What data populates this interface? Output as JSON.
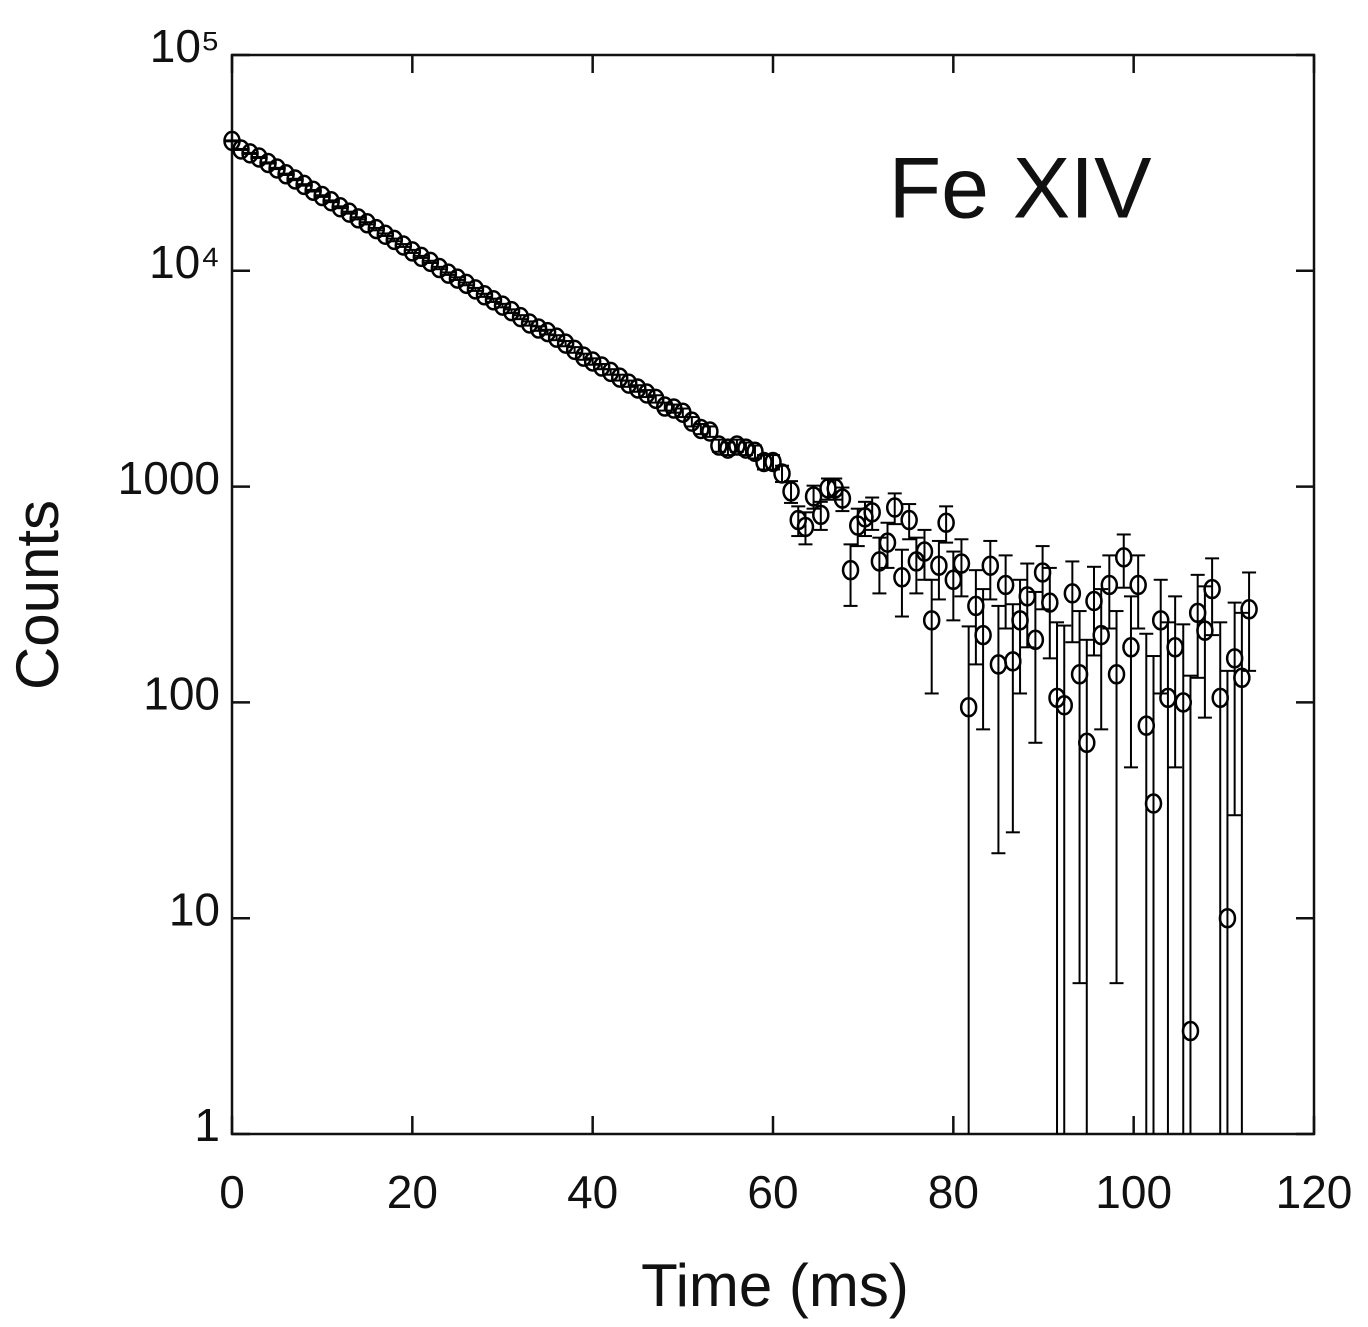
{
  "chart_data": {
    "type": "scatter",
    "annotation": "Fe XIV",
    "xlabel": "Time (ms)",
    "ylabel": "Counts",
    "log_y": true,
    "color": "#000000",
    "xlim": [
      0,
      120
    ],
    "ylim": [
      1,
      100000
    ],
    "xticks": [
      0,
      20,
      40,
      60,
      80,
      100,
      120
    ],
    "yticks": [
      1,
      10,
      100,
      1000,
      {
        "value": 10000,
        "label": "10⁴"
      },
      {
        "value": 100000,
        "label": "10⁵"
      }
    ],
    "x": [
      0,
      1,
      2,
      3,
      4,
      5,
      6,
      7,
      8,
      9,
      10,
      11,
      12,
      13,
      14,
      15,
      16,
      17,
      18,
      19,
      20,
      21,
      22,
      23,
      24,
      25,
      26,
      27,
      28,
      29,
      30,
      31,
      32,
      33,
      34,
      35,
      36,
      37,
      38,
      39,
      40,
      41,
      42,
      43,
      44,
      45,
      46,
      47,
      48,
      49,
      50,
      51,
      52,
      53,
      54,
      55,
      56,
      57,
      58,
      59,
      60,
      61,
      62.0,
      62.8,
      63.6,
      64.5,
      65.3,
      66.1,
      66.9,
      67.7,
      68.6,
      69.4,
      70.2,
      71.0,
      71.8,
      72.7,
      73.5,
      74.3,
      75.1,
      75.9,
      76.8,
      77.6,
      78.4,
      79.2,
      80.0,
      80.9,
      81.7,
      82.5,
      83.3,
      84.1,
      85.0,
      85.8,
      86.6,
      87.4,
      88.2,
      89.1,
      89.9,
      90.7,
      91.5,
      92.3,
      93.2,
      94.0,
      94.8,
      95.6,
      96.4,
      97.3,
      98.1,
      98.9,
      99.7,
      100.5,
      101.4,
      102.2,
      103.0,
      103.8,
      104.6,
      105.5,
      106.3,
      107.1,
      107.9,
      108.7,
      109.6,
      110.4,
      111.2,
      112.0,
      112.8
    ],
    "values": [
      40000,
      36500,
      35000,
      33500,
      31600,
      29800,
      28000,
      26500,
      25000,
      23500,
      22200,
      21000,
      19700,
      18600,
      17500,
      16600,
      15600,
      14700,
      13900,
      13100,
      12300,
      11600,
      11000,
      10300,
      9700,
      9200,
      8700,
      8200,
      7700,
      7300,
      6900,
      6500,
      6100,
      5700,
      5400,
      5200,
      4900,
      4600,
      4300,
      4000,
      3800,
      3600,
      3400,
      3200,
      3000,
      2850,
      2700,
      2550,
      2350,
      2300,
      2200,
      2000,
      1850,
      1800,
      1550,
      1500,
      1550,
      1500,
      1450,
      1300,
      1300,
      1150,
      950,
      700,
      650,
      900,
      740,
      980,
      980,
      880,
      410,
      660,
      720,
      760,
      450,
      550,
      800,
      380,
      700,
      450,
      500,
      240,
      430,
      680,
      370,
      440,
      95,
      280,
      205,
      430,
      150,
      350,
      155,
      240,
      310,
      195,
      400,
      290,
      105,
      97,
      320,
      135,
      65,
      295,
      205,
      350,
      135,
      470,
      180,
      350,
      78,
      34,
      240,
      105,
      180,
      100,
      3,
      260,
      215,
      335,
      105,
      10,
      160,
      130,
      270
    ],
    "errors": [
      200,
      200,
      200,
      200,
      200,
      200,
      200,
      200,
      200,
      200,
      200,
      200,
      200,
      200,
      200,
      200,
      200,
      200,
      200,
      200,
      200,
      130,
      130,
      130,
      130,
      130,
      130,
      130,
      130,
      130,
      130,
      130,
      130,
      130,
      130,
      130,
      130,
      130,
      130,
      130,
      130,
      100,
      100,
      100,
      100,
      100,
      100,
      100,
      100,
      100,
      100,
      100,
      100,
      100,
      100,
      100,
      100,
      100,
      100,
      100,
      100,
      100,
      110,
      110,
      110,
      110,
      110,
      110,
      110,
      110,
      130,
      130,
      130,
      130,
      130,
      130,
      130,
      130,
      130,
      130,
      130,
      130,
      130,
      130,
      130,
      130,
      130,
      130,
      130,
      130,
      130,
      130,
      130,
      130,
      130,
      130,
      130,
      130,
      130,
      130,
      130,
      130,
      130,
      130,
      130,
      130,
      130,
      130,
      130,
      130,
      130,
      130,
      130,
      130,
      130,
      130,
      130,
      130,
      130,
      130,
      130,
      130,
      130,
      130,
      130
    ]
  }
}
